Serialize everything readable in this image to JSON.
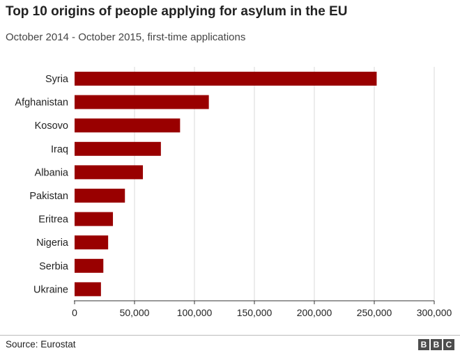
{
  "header": {
    "title": "Top 10 origins of people applying for asylum in the EU",
    "subtitle": "October 2014 - October 2015, first-time applications"
  },
  "chart_data": {
    "type": "bar",
    "orientation": "horizontal",
    "categories": [
      "Syria",
      "Afghanistan",
      "Kosovo",
      "Iraq",
      "Albania",
      "Pakistan",
      "Eritrea",
      "Nigeria",
      "Serbia",
      "Ukraine"
    ],
    "values": [
      252000,
      112000,
      88000,
      72000,
      57000,
      42000,
      32000,
      28000,
      24000,
      22000
    ],
    "xlim": [
      0,
      300000
    ],
    "xticks": [
      0,
      50000,
      100000,
      150000,
      200000,
      250000,
      300000
    ],
    "xtick_labels": [
      "0",
      "50,000",
      "100,000",
      "150,000",
      "200,000",
      "250,000",
      "300,000"
    ],
    "bar_color": "#990000",
    "grid": "vertical"
  },
  "footer": {
    "source": "Source: Eurostat",
    "logo_letters": [
      "B",
      "B",
      "C"
    ]
  }
}
